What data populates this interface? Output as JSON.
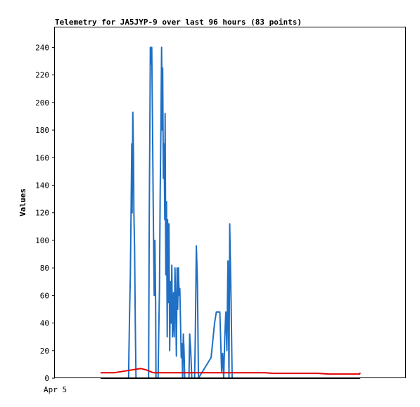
{
  "chart_data": {
    "type": "line",
    "title": "Telemetry for JA5JYP-9 over last 96 hours (83 points)",
    "ylabel": "Values",
    "xlabel": "",
    "x_tick_labels": [
      "Apr 5"
    ],
    "y_ticks": [
      0,
      20,
      40,
      60,
      80,
      100,
      120,
      140,
      160,
      180,
      200,
      220,
      240
    ],
    "ylim": [
      0,
      255
    ],
    "xlim": [
      0,
      100
    ],
    "grid": false,
    "legend": "none",
    "series": [
      {
        "color": "#1f6fc4",
        "points": [
          [
            21.0,
            0
          ],
          [
            21.1,
            20
          ],
          [
            21.3,
            50
          ],
          [
            21.5,
            75
          ],
          [
            21.7,
            120
          ],
          [
            21.9,
            170
          ],
          [
            22.0,
            120
          ],
          [
            22.2,
            193
          ],
          [
            22.4,
            160
          ],
          [
            22.5,
            120
          ],
          [
            22.7,
            95
          ],
          [
            22.9,
            40
          ],
          [
            23.1,
            0
          ],
          [
            26.7,
            0
          ],
          [
            26.9,
            120
          ],
          [
            27.1,
            195
          ],
          [
            27.2,
            240
          ],
          [
            27.4,
            228
          ],
          [
            27.6,
            240
          ],
          [
            27.8,
            190
          ],
          [
            28.0,
            130
          ],
          [
            28.2,
            80
          ],
          [
            28.3,
            60
          ],
          [
            28.5,
            100
          ],
          [
            28.7,
            55
          ],
          [
            28.8,
            0
          ],
          [
            29.4,
            0
          ],
          [
            29.6,
            35
          ],
          [
            29.8,
            65
          ],
          [
            30.0,
            135
          ],
          [
            30.2,
            180
          ],
          [
            30.4,
            240
          ],
          [
            30.6,
            180
          ],
          [
            30.7,
            225
          ],
          [
            30.9,
            145
          ],
          [
            31.1,
            170
          ],
          [
            31.3,
            115
          ],
          [
            31.4,
            192
          ],
          [
            31.6,
            75
          ],
          [
            31.8,
            128
          ],
          [
            32.0,
            30
          ],
          [
            32.1,
            115
          ],
          [
            32.3,
            55
          ],
          [
            32.5,
            112
          ],
          [
            32.7,
            20
          ],
          [
            32.9,
            70
          ],
          [
            33.1,
            40
          ],
          [
            33.3,
            82
          ],
          [
            33.5,
            30
          ],
          [
            33.7,
            45
          ],
          [
            33.8,
            62
          ],
          [
            34.0,
            30
          ],
          [
            34.2,
            80
          ],
          [
            34.4,
            55
          ],
          [
            34.6,
            16
          ],
          [
            34.8,
            80
          ],
          [
            35.0,
            50
          ],
          [
            35.2,
            80
          ],
          [
            35.4,
            60
          ],
          [
            35.6,
            65
          ],
          [
            35.8,
            40
          ],
          [
            36.0,
            15
          ],
          [
            36.2,
            25
          ],
          [
            36.4,
            0
          ],
          [
            36.6,
            32
          ],
          [
            36.8,
            20
          ],
          [
            37.0,
            0
          ],
          [
            38.2,
            0
          ],
          [
            38.4,
            32
          ],
          [
            38.7,
            20
          ],
          [
            39.0,
            0
          ],
          [
            39.8,
            0
          ],
          [
            40.0,
            30
          ],
          [
            40.3,
            96
          ],
          [
            40.6,
            70
          ],
          [
            40.9,
            0
          ],
          [
            44.5,
            15
          ],
          [
            45.5,
            40
          ],
          [
            46.0,
            48
          ],
          [
            47.0,
            48
          ],
          [
            47.5,
            5
          ],
          [
            47.8,
            18
          ],
          [
            48.1,
            0
          ],
          [
            48.4,
            30
          ],
          [
            48.7,
            48
          ],
          [
            49.0,
            20
          ],
          [
            49.3,
            85
          ],
          [
            49.6,
            0
          ],
          [
            49.8,
            112
          ],
          [
            50.2,
            55
          ],
          [
            50.5,
            0
          ]
        ]
      },
      {
        "color": "#e00000",
        "points": [
          [
            13,
            4
          ],
          [
            17,
            4
          ],
          [
            22,
            6
          ],
          [
            24.5,
            7
          ],
          [
            26,
            6
          ],
          [
            28,
            4
          ],
          [
            33,
            4
          ],
          [
            45,
            4
          ],
          [
            60,
            4
          ],
          [
            62,
            3.5
          ],
          [
            75,
            3.5
          ],
          [
            78,
            3
          ],
          [
            85,
            3
          ],
          [
            86.8,
            3
          ],
          [
            87,
            4
          ]
        ]
      },
      {
        "color": "#000000",
        "points": [
          [
            13,
            0
          ],
          [
            87,
            0
          ]
        ]
      }
    ]
  }
}
